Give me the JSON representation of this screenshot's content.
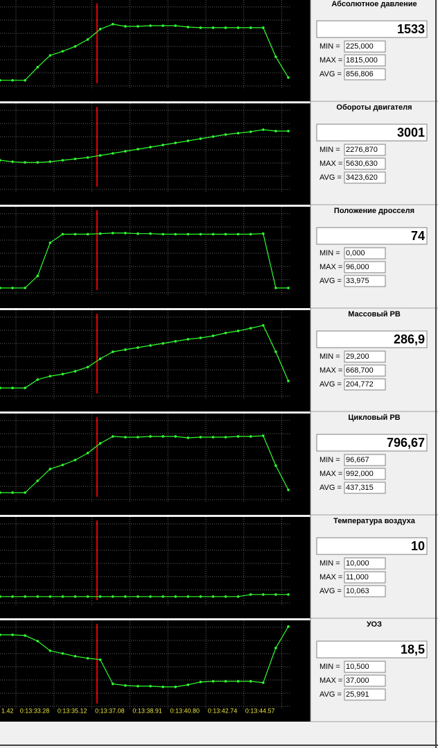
{
  "panels": [
    {
      "title": "Абсолютное давление",
      "current": "1533",
      "min": "225,000",
      "max": "1815,000",
      "avg": "856,806",
      "ylim": [
        -350,
        2500
      ],
      "trace": [
        225,
        225,
        225,
        597,
        930,
        1048,
        1185,
        1381,
        1675,
        1815,
        1754,
        1754,
        1773,
        1773,
        1773,
        1734,
        1715,
        1715,
        1715,
        1715,
        1715,
        1715,
        892,
        303
      ]
    },
    {
      "title": "Обороты двигателя",
      "current": "3001",
      "min": "2276,870",
      "max": "5630,630",
      "avg": "3423,620",
      "ylim": [
        -1900,
        8200
      ],
      "trace": [
        2485,
        2345,
        2275,
        2275,
        2345,
        2485,
        2625,
        2764,
        2974,
        3183,
        3393,
        3603,
        3813,
        4022,
        4232,
        4442,
        4652,
        4861,
        5071,
        5211,
        5351,
        5560,
        5420,
        5420
      ]
    },
    {
      "title": "Положение дросселя",
      "current": "74",
      "min": "0,000",
      "max": "96,000",
      "avg": "33,975",
      "ylim": [
        -34,
        142
      ],
      "trace": [
        0,
        0,
        0,
        21,
        79,
        94,
        94,
        94,
        95,
        96,
        96,
        95,
        95,
        94,
        94,
        94,
        94,
        94,
        94,
        94,
        94,
        95,
        0,
        0
      ]
    },
    {
      "title": "Массовый РВ",
      "current": "286,9",
      "min": "29,200",
      "max": "668,700",
      "avg": "204,772",
      "ylim": [
        -190,
        775
      ],
      "trace": [
        29,
        29,
        29,
        109,
        142,
        162,
        189,
        229,
        309,
        376,
        396,
        416,
        436,
        456,
        476,
        496,
        509,
        529,
        556,
        576,
        602,
        629,
        376,
        96
      ]
    },
    {
      "title": "Цикловый РВ",
      "current": "796,67",
      "min": "96,667",
      "max": "992,000",
      "avg": "437,315",
      "ylim": [
        -226,
        1283
      ],
      "trace": [
        97,
        97,
        97,
        274,
        451,
        513,
        586,
        690,
        836,
        940,
        929,
        929,
        940,
        940,
        940,
        919,
        929,
        929,
        929,
        940,
        940,
        950,
        503,
        138
      ]
    },
    {
      "title": "Температура воздуха",
      "current": "10",
      "min": "10,000",
      "max": "11,000",
      "avg": "10,063",
      "ylim": [
        0,
        48
      ],
      "trace": [
        10,
        10,
        10,
        10,
        10,
        10,
        10,
        10,
        10,
        10,
        10,
        10,
        10,
        10,
        10,
        10,
        10,
        10,
        10,
        10,
        11,
        11,
        11,
        11
      ]
    },
    {
      "title": "УОЗ",
      "current": "18,5",
      "min": "10,500",
      "max": "37,000",
      "avg": "25,991",
      "ylim": [
        -4,
        39.7
      ],
      "trace": [
        33.4,
        33.4,
        33.1,
        30.7,
        26.5,
        25.3,
        24.1,
        23.2,
        22.6,
        12.1,
        11.4,
        11.1,
        11.1,
        10.8,
        10.8,
        11.7,
        12.9,
        13.2,
        13.2,
        13.2,
        13.2,
        12.6,
        27.7,
        37.0
      ]
    }
  ],
  "stat_labels": [
    "MIN =",
    "MAX =",
    "AVG ="
  ],
  "time_labels": [
    "1.42",
    "0:13:33.28",
    "0:13:35.12",
    "0:13:37.08",
    "0:13:38.91",
    "0:13:40.80",
    "0:13:42.74",
    "0:13:44.57"
  ]
}
